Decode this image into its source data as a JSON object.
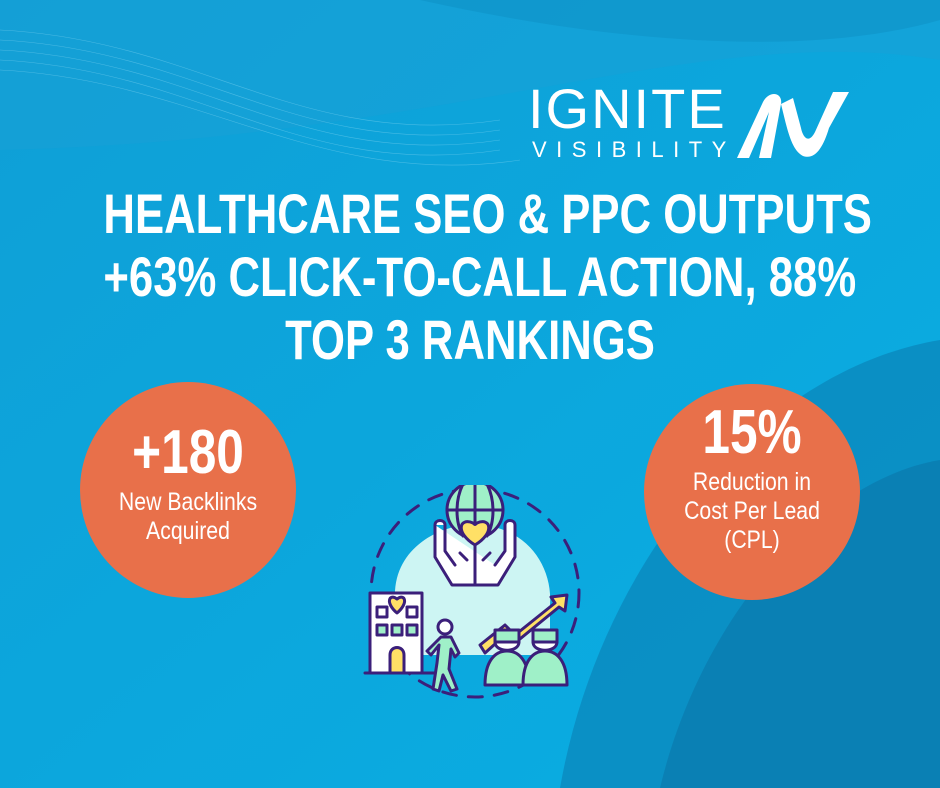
{
  "brand": {
    "name": "IGNITE",
    "sub": "VISIBILITY"
  },
  "title": [
    "HEALTHCARE SEO & PPC OUTPUTS",
    "+63% CLICK-TO-CALL ACTION, 88%",
    "TOP 3 RANKINGS"
  ],
  "stats": [
    {
      "value": "+180",
      "label": [
        "New Backlinks",
        "Acquired"
      ]
    },
    {
      "value": "15%",
      "label": [
        "Reduction in",
        "Cost Per Lead",
        "(CPL)"
      ]
    }
  ],
  "colors": {
    "background": "#0aa6dd",
    "accent": "#e8704a",
    "illustration_stroke": "#3b1f7a",
    "mint": "#9ff0c8",
    "yellow": "#ffe066"
  },
  "icons": [
    "healthcare-illustration-icon",
    "logo-mark-icon"
  ]
}
